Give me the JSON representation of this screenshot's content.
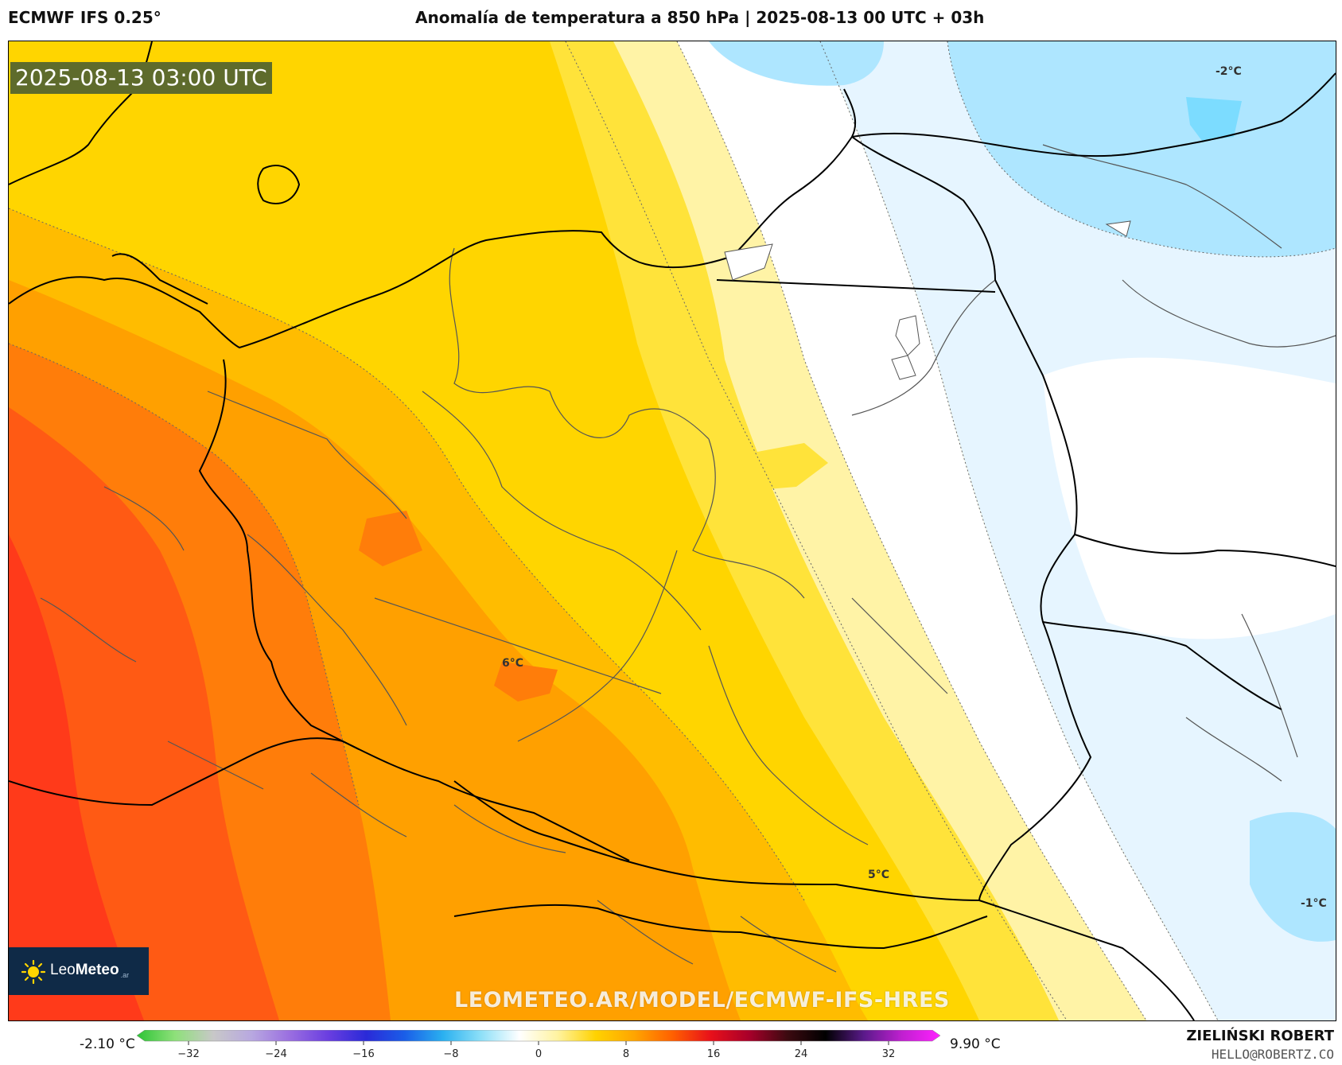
{
  "header": {
    "model": "ECMWF IFS 0.25°",
    "title": "Anomalía de temperatura a 850 hPa | 2025-08-13 00 UTC + 03h"
  },
  "map": {
    "valid_time": "2025-08-13 03:00 UTC",
    "watermark": "LEOMETEO.AR/MODEL/ECMWF-IFS-HRES",
    "contour_labels": [
      "-2°C",
      "6°C",
      "5°C",
      "-1°C"
    ],
    "logo": {
      "text_light": "Leo",
      "text_bold": "Meteo",
      "suffix": ".ar",
      "icon": "sun-icon"
    }
  },
  "colorbar": {
    "min_label": "-2.10 °C",
    "max_label": "9.90 °C",
    "ticks": [
      "−32",
      "−24",
      "−16",
      "−8",
      "0",
      "8",
      "16",
      "24",
      "32"
    ],
    "tick_values": [
      -32,
      -24,
      -16,
      -8,
      0,
      8,
      16,
      24,
      32
    ],
    "range": [
      -36,
      36
    ],
    "stops": [
      "#2ec436",
      "#8ee07a",
      "#c8c8c8",
      "#b8a8e0",
      "#9a6ee0",
      "#6a3ee0",
      "#2a2ad8",
      "#1a5ee8",
      "#2ab0f0",
      "#8ee0f8",
      "#ffffff",
      "#fff3a0",
      "#ffd200",
      "#ffa500",
      "#ff6000",
      "#e8101a",
      "#a8002a",
      "#3c0a10",
      "#000000",
      "#5a1a8a",
      "#c020d0",
      "#ff20ff"
    ]
  },
  "author": {
    "name": "ZIELIŃSKI ROBERT",
    "email": "HELLO@ROBERTZ.CO"
  },
  "palette": {
    "deep_red": "#ff3a1a",
    "red_orange": "#ff5a14",
    "orange": "#ff7d0a",
    "dark_amber": "#ffa000",
    "amber": "#ffbc00",
    "gold": "#ffd500",
    "yellow": "#ffe33a",
    "pale_yellow": "#fff3a6",
    "white": "#ffffff",
    "ice_blue": "#e6f5ff",
    "light_blue": "#aee6ff",
    "cyan": "#7cdcff"
  }
}
